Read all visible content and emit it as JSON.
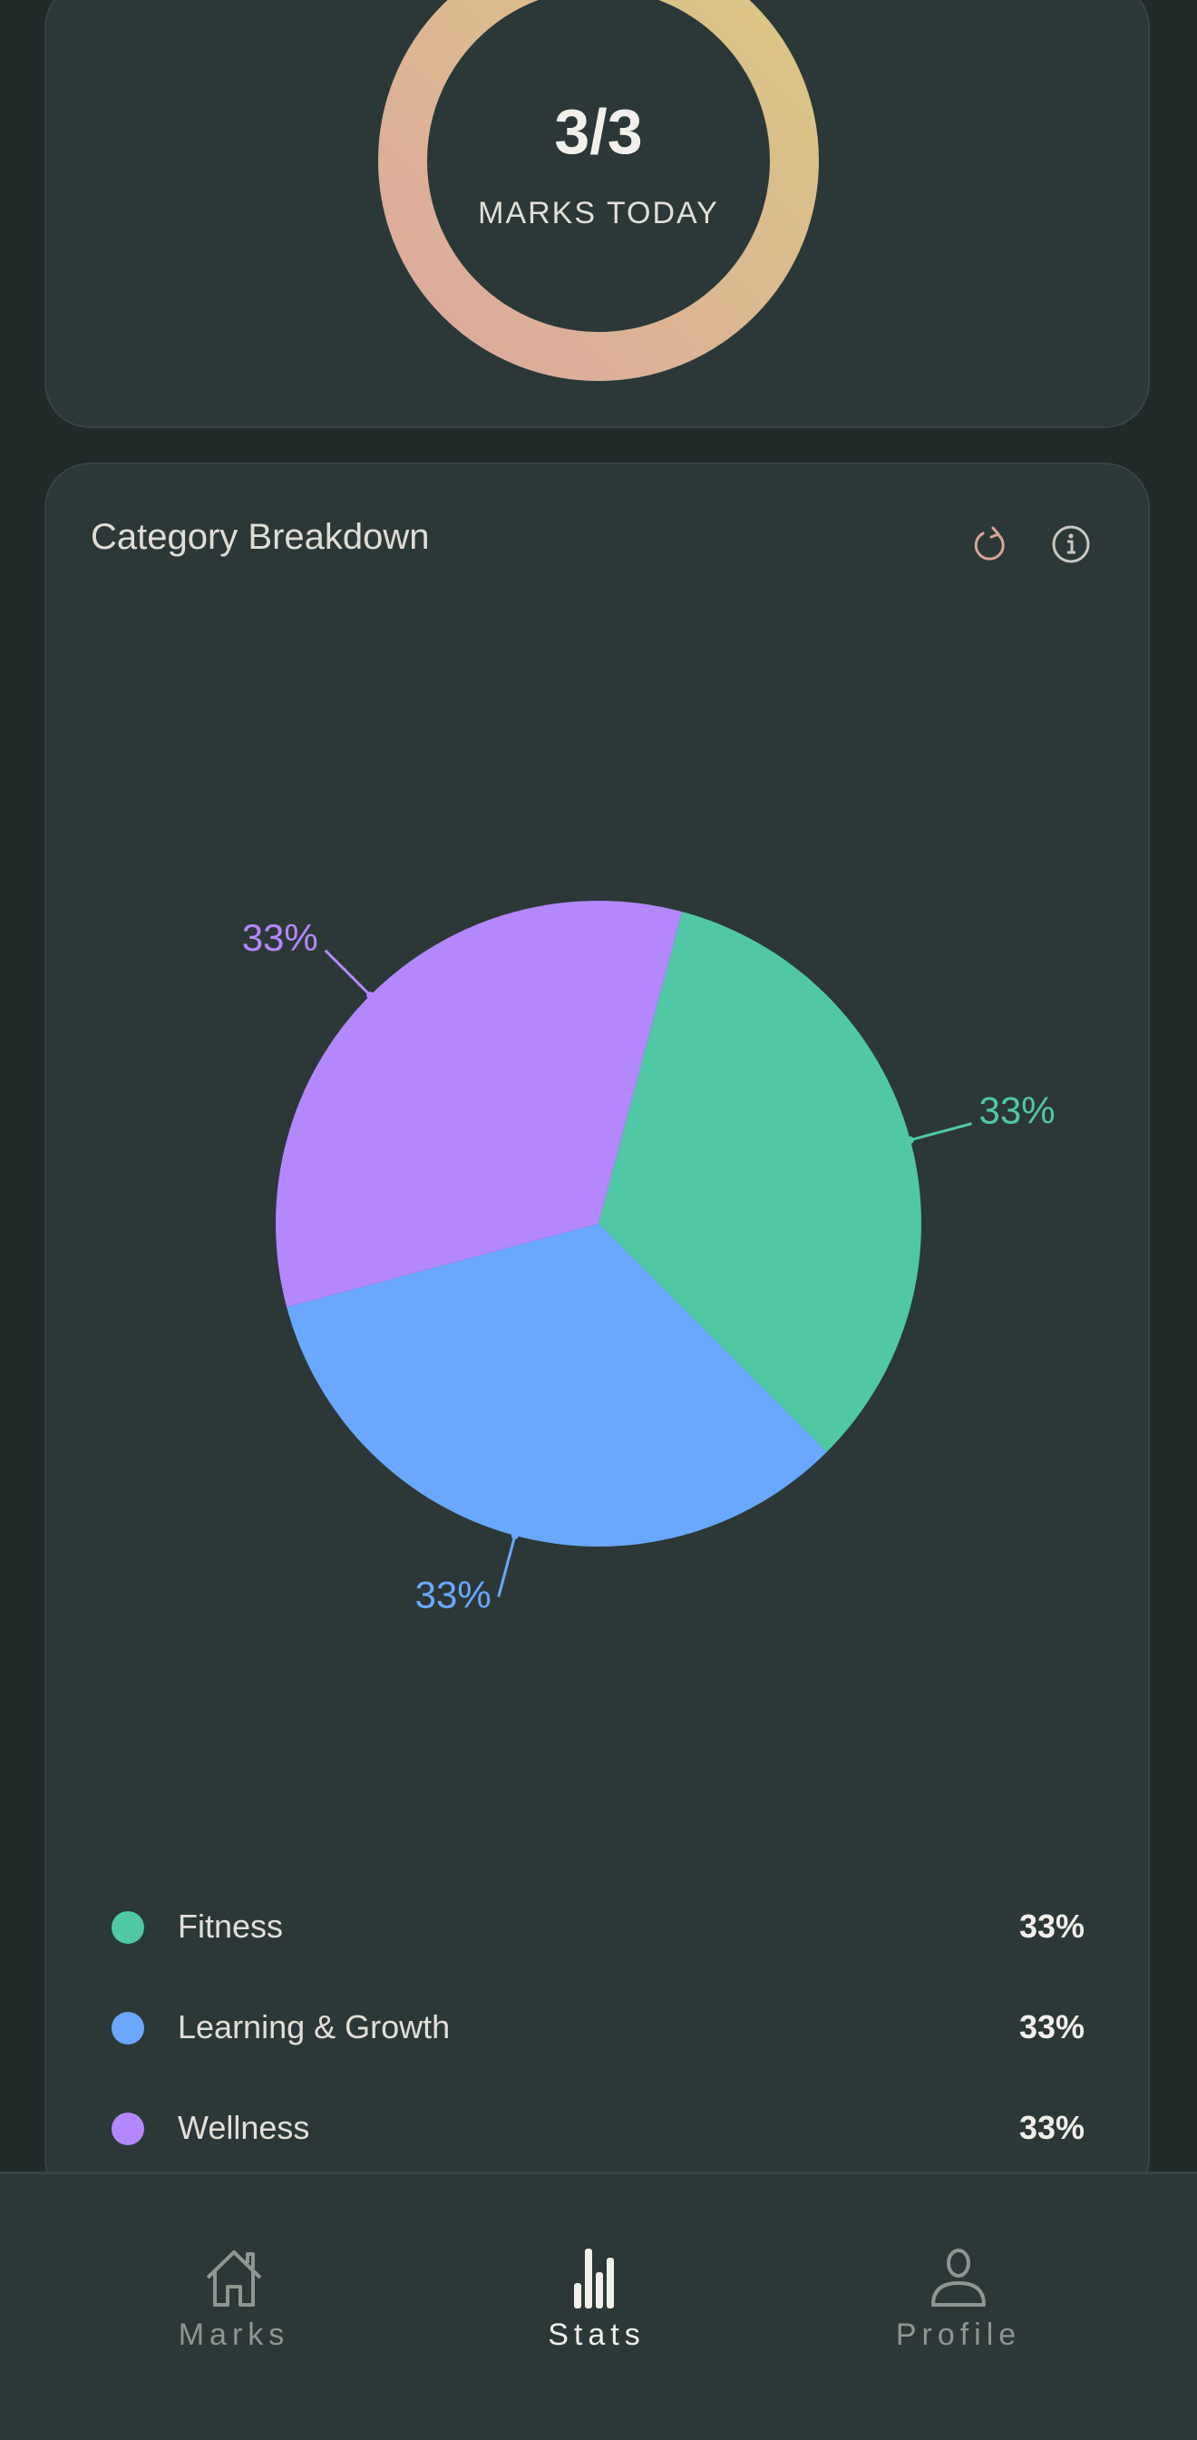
{
  "today": {
    "value": "3/3",
    "label": "MARKS TODAY",
    "progress": 1.0,
    "gradient": [
      "#dca99e",
      "#dbc783"
    ]
  },
  "breakdown": {
    "title": "Category Breakdown",
    "refresh_icon": "refresh-icon",
    "info_icon": "info-icon",
    "accent": "#d9a49a"
  },
  "chart_data": {
    "type": "pie",
    "slices": [
      {
        "name": "Fitness",
        "value": 33,
        "label": "33%",
        "color": "#50c8a6"
      },
      {
        "name": "Learning & Growth",
        "value": 33,
        "label": "33%",
        "color": "#6aa8ff"
      },
      {
        "name": "Wellness",
        "value": 33,
        "label": "33%",
        "color": "#b587fd"
      }
    ]
  },
  "legend": [
    {
      "label": "Fitness",
      "pct": "33%",
      "color": "#50c8a6"
    },
    {
      "label": "Learning & Growth",
      "pct": "33%",
      "color": "#6aa8ff"
    },
    {
      "label": "Wellness",
      "pct": "33%",
      "color": "#b587fd"
    }
  ],
  "nav": {
    "items": [
      {
        "label": "Marks",
        "icon": "home-icon",
        "active": false
      },
      {
        "label": "Stats",
        "icon": "bar-chart-icon",
        "active": true
      },
      {
        "label": "Profile",
        "icon": "user-icon",
        "active": false
      }
    ]
  }
}
